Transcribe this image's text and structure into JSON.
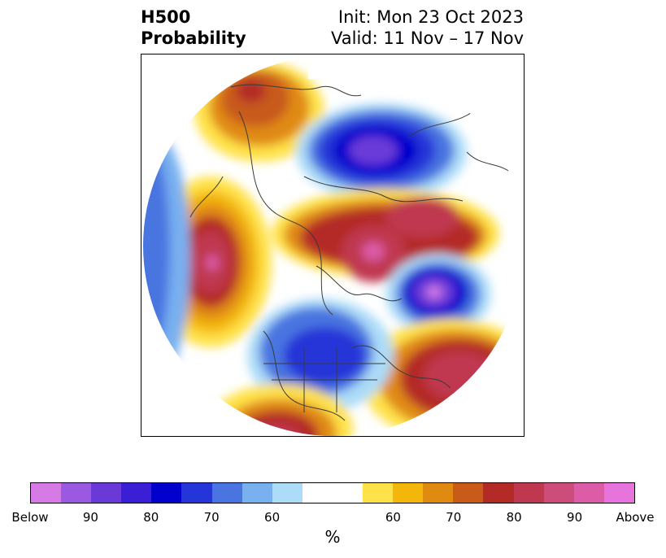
{
  "title": {
    "left_line1": "H500",
    "left_line2": "Probability",
    "right_line1": "Init: Mon 23 Oct 2023",
    "right_line2": "Valid: 11 Nov – 17 Nov"
  },
  "colorbar": {
    "unit": "%",
    "colors": [
      "#d67be6",
      "#9b58e0",
      "#6a3ad8",
      "#3a1fd6",
      "#0000cc",
      "#2536d8",
      "#4a74e0",
      "#78b0f0",
      "#acdcf8",
      "#ffffff",
      "#ffffff",
      "#ffe24a",
      "#f3b70b",
      "#e08a12",
      "#c85a1a",
      "#b42a26",
      "#c03850",
      "#cc4c7a",
      "#dc5ca8",
      "#e674dc"
    ],
    "ticks": [
      "Below",
      "90",
      "80",
      "70",
      "60",
      "60",
      "70",
      "80",
      "90",
      "Above"
    ]
  },
  "map": {
    "anomalies": [
      {
        "name": "northwest-low",
        "sign": "below",
        "peak": 85
      },
      {
        "name": "north-america-low",
        "sign": "below",
        "peak": 75
      },
      {
        "name": "central-high",
        "sign": "above",
        "peak": 85
      },
      {
        "name": "atlantic-low",
        "sign": "below",
        "peak": 90
      },
      {
        "name": "pacific-high",
        "sign": "above",
        "peak": 90
      },
      {
        "name": "europe-high",
        "sign": "above",
        "peak": 85
      },
      {
        "name": "southwest-high",
        "sign": "above",
        "peak": 80
      },
      {
        "name": "south-low",
        "sign": "below",
        "peak": 70
      }
    ]
  }
}
